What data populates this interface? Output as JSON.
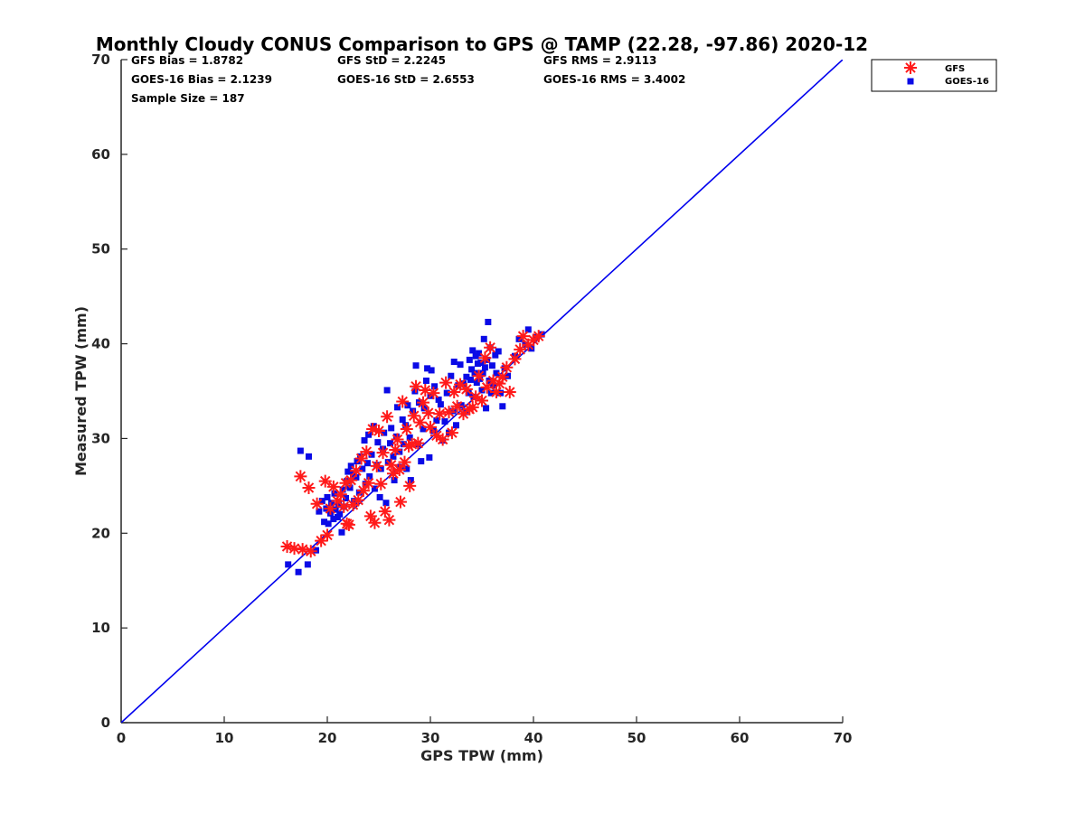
{
  "chart_data": {
    "type": "scatter",
    "title": "Monthly Cloudy CONUS Comparison to GPS @ TAMP (22.28, -97.86) 2020-12",
    "xlabel": "GPS TPW (mm)",
    "ylabel": "Measured TPW (mm)",
    "xlim": [
      0,
      70
    ],
    "ylim": [
      0,
      70
    ],
    "xticks": [
      "0",
      "10",
      "20",
      "30",
      "40",
      "50",
      "60",
      "70"
    ],
    "yticks": [
      "0",
      "10",
      "20",
      "30",
      "40",
      "50",
      "60",
      "70"
    ],
    "grid": false,
    "legend_position": "top-right",
    "stats": {
      "gfs_bias": "GFS Bias = 1.8782",
      "goes_bias": "GOES-16 Bias = 2.1239",
      "sample_size": "Sample Size = 187",
      "gfs_std": "GFS StD = 2.2245",
      "goes_std": "GOES-16 StD = 2.6553",
      "gfs_rms": "GFS RMS = 2.9113",
      "goes_rms": "GOES-16 RMS = 3.4002"
    },
    "reference_line": {
      "x": [
        0,
        70
      ],
      "y": [
        0,
        70
      ],
      "color": "#0000ee"
    },
    "series": [
      {
        "name": "GFS",
        "marker": "asterisk",
        "color": "#ff1a1a",
        "points": [
          [
            16.1,
            18.6
          ],
          [
            16.8,
            18.4
          ],
          [
            17.4,
            26.0
          ],
          [
            17.6,
            18.3
          ],
          [
            18.2,
            24.8
          ],
          [
            18.4,
            18.1
          ],
          [
            19.0,
            23.1
          ],
          [
            19.4,
            19.2
          ],
          [
            19.8,
            25.5
          ],
          [
            20.0,
            19.8
          ],
          [
            20.3,
            22.6
          ],
          [
            20.6,
            24.9
          ],
          [
            21.0,
            23.4
          ],
          [
            21.3,
            24.1
          ],
          [
            21.6,
            22.8
          ],
          [
            21.8,
            25.3
          ],
          [
            21.9,
            21.0
          ],
          [
            22.1,
            20.9
          ],
          [
            22.3,
            25.6
          ],
          [
            22.5,
            23.0
          ],
          [
            22.8,
            26.6
          ],
          [
            23.0,
            23.5
          ],
          [
            23.3,
            27.9
          ],
          [
            23.5,
            24.5
          ],
          [
            23.8,
            28.6
          ],
          [
            24.0,
            25.3
          ],
          [
            24.2,
            21.8
          ],
          [
            24.4,
            31.0
          ],
          [
            24.6,
            21.1
          ],
          [
            24.8,
            27.1
          ],
          [
            25.0,
            30.8
          ],
          [
            25.2,
            25.2
          ],
          [
            25.4,
            28.5
          ],
          [
            25.6,
            22.3
          ],
          [
            25.8,
            32.3
          ],
          [
            26.0,
            21.4
          ],
          [
            26.2,
            27.2
          ],
          [
            26.4,
            26.3
          ],
          [
            26.6,
            28.8
          ],
          [
            26.8,
            29.9
          ],
          [
            27.0,
            26.7
          ],
          [
            27.1,
            23.3
          ],
          [
            27.3,
            33.9
          ],
          [
            27.5,
            27.5
          ],
          [
            27.7,
            31.0
          ],
          [
            27.9,
            29.2
          ],
          [
            28.0,
            25.0
          ],
          [
            28.2,
            29.4
          ],
          [
            28.4,
            32.4
          ],
          [
            28.6,
            35.5
          ],
          [
            28.8,
            29.5
          ],
          [
            29.0,
            31.7
          ],
          [
            29.3,
            33.8
          ],
          [
            29.5,
            35.1
          ],
          [
            29.8,
            32.7
          ],
          [
            30.0,
            31.2
          ],
          [
            30.3,
            34.8
          ],
          [
            30.6,
            30.3
          ],
          [
            30.9,
            32.6
          ],
          [
            31.2,
            29.9
          ],
          [
            31.5,
            35.9
          ],
          [
            31.8,
            32.8
          ],
          [
            32.1,
            30.6
          ],
          [
            32.3,
            34.9
          ],
          [
            32.6,
            33.4
          ],
          [
            32.9,
            35.7
          ],
          [
            33.2,
            32.6
          ],
          [
            33.5,
            35.2
          ],
          [
            33.8,
            33.1
          ],
          [
            34.1,
            33.3
          ],
          [
            34.4,
            34.4
          ],
          [
            34.7,
            36.6
          ],
          [
            35.0,
            34.0
          ],
          [
            35.3,
            38.5
          ],
          [
            35.5,
            35.4
          ],
          [
            35.8,
            39.6
          ],
          [
            36.1,
            36.1
          ],
          [
            36.4,
            34.9
          ],
          [
            36.7,
            35.8
          ],
          [
            37.0,
            36.5
          ],
          [
            37.4,
            37.5
          ],
          [
            37.7,
            34.9
          ],
          [
            38.2,
            38.4
          ],
          [
            38.7,
            39.4
          ],
          [
            39.0,
            40.8
          ],
          [
            39.5,
            39.9
          ],
          [
            40.0,
            40.4
          ],
          [
            40.5,
            40.8
          ]
        ]
      },
      {
        "name": "GOES-16",
        "marker": "square",
        "color": "#0a0ae6",
        "points": [
          [
            16.2,
            16.7
          ],
          [
            17.2,
            15.9
          ],
          [
            17.4,
            28.7
          ],
          [
            18.1,
            16.7
          ],
          [
            18.2,
            28.1
          ],
          [
            18.9,
            18.2
          ],
          [
            19.2,
            22.3
          ],
          [
            19.5,
            23.4
          ],
          [
            19.7,
            21.2
          ],
          [
            19.9,
            22.6
          ],
          [
            20.0,
            23.8
          ],
          [
            20.1,
            21.0
          ],
          [
            20.3,
            22.1
          ],
          [
            20.4,
            23.2
          ],
          [
            20.6,
            21.5
          ],
          [
            20.7,
            24.2
          ],
          [
            20.8,
            22.5
          ],
          [
            21.0,
            21.7
          ],
          [
            21.1,
            23.0
          ],
          [
            21.2,
            22.0
          ],
          [
            21.4,
            20.1
          ],
          [
            21.5,
            24.6
          ],
          [
            21.6,
            22.8
          ],
          [
            21.8,
            23.7
          ],
          [
            21.9,
            25.5
          ],
          [
            22.0,
            26.5
          ],
          [
            22.2,
            24.8
          ],
          [
            22.3,
            27.1
          ],
          [
            22.5,
            26.2
          ],
          [
            22.6,
            23.4
          ],
          [
            22.8,
            25.9
          ],
          [
            22.9,
            27.6
          ],
          [
            23.1,
            24.3
          ],
          [
            23.2,
            28.1
          ],
          [
            23.4,
            26.8
          ],
          [
            23.6,
            29.8
          ],
          [
            23.7,
            25.2
          ],
          [
            23.9,
            27.4
          ],
          [
            24.0,
            30.4
          ],
          [
            24.1,
            26.0
          ],
          [
            24.3,
            28.3
          ],
          [
            24.5,
            31.3
          ],
          [
            24.6,
            24.7
          ],
          [
            24.8,
            27.2
          ],
          [
            24.9,
            29.6
          ],
          [
            25.1,
            23.8
          ],
          [
            25.2,
            26.8
          ],
          [
            25.4,
            28.9
          ],
          [
            25.5,
            30.6
          ],
          [
            25.7,
            23.2
          ],
          [
            25.8,
            35.1
          ],
          [
            25.9,
            27.5
          ],
          [
            26.1,
            29.5
          ],
          [
            26.2,
            31.1
          ],
          [
            26.4,
            28.1
          ],
          [
            26.5,
            25.6
          ],
          [
            26.7,
            30.2
          ],
          [
            26.8,
            33.3
          ],
          [
            27.0,
            28.6
          ],
          [
            27.1,
            27.0
          ],
          [
            27.3,
            32.0
          ],
          [
            27.4,
            29.4
          ],
          [
            27.6,
            31.4
          ],
          [
            27.7,
            26.8
          ],
          [
            27.8,
            33.5
          ],
          [
            28.0,
            30.1
          ],
          [
            28.1,
            25.6
          ],
          [
            28.3,
            32.9
          ],
          [
            28.5,
            35.0
          ],
          [
            28.6,
            37.7
          ],
          [
            28.8,
            29.4
          ],
          [
            28.9,
            33.8
          ],
          [
            29.1,
            27.6
          ],
          [
            29.3,
            31.0
          ],
          [
            29.4,
            33.2
          ],
          [
            29.6,
            36.1
          ],
          [
            29.7,
            37.4
          ],
          [
            29.9,
            28.0
          ],
          [
            30.0,
            34.5
          ],
          [
            30.1,
            37.2
          ],
          [
            30.3,
            30.8
          ],
          [
            30.4,
            35.5
          ],
          [
            30.6,
            31.9
          ],
          [
            30.8,
            34.1
          ],
          [
            31.0,
            33.6
          ],
          [
            31.2,
            29.8
          ],
          [
            31.4,
            31.8
          ],
          [
            31.6,
            34.8
          ],
          [
            31.8,
            30.6
          ],
          [
            32.0,
            36.6
          ],
          [
            32.2,
            32.9
          ],
          [
            32.3,
            38.1
          ],
          [
            32.5,
            31.4
          ],
          [
            32.7,
            35.6
          ],
          [
            32.9,
            37.8
          ],
          [
            33.0,
            33.5
          ],
          [
            33.2,
            35.8
          ],
          [
            33.4,
            32.8
          ],
          [
            33.5,
            36.5
          ],
          [
            33.7,
            34.8
          ],
          [
            33.8,
            38.3
          ],
          [
            33.9,
            36.2
          ],
          [
            34.0,
            37.3
          ],
          [
            34.1,
            39.3
          ],
          [
            34.2,
            34.4
          ],
          [
            34.3,
            36.9
          ],
          [
            34.4,
            38.7
          ],
          [
            34.5,
            35.9
          ],
          [
            34.6,
            37.9
          ],
          [
            34.7,
            39.0
          ],
          [
            34.8,
            36.3
          ],
          [
            34.9,
            38.0
          ],
          [
            35.0,
            35.1
          ],
          [
            35.1,
            36.9
          ],
          [
            35.2,
            40.5
          ],
          [
            35.3,
            37.5
          ],
          [
            35.4,
            33.2
          ],
          [
            35.5,
            38.3
          ],
          [
            35.6,
            42.3
          ],
          [
            35.7,
            36.1
          ],
          [
            35.8,
            39.6
          ],
          [
            35.9,
            34.8
          ],
          [
            36.0,
            37.7
          ],
          [
            36.1,
            35.6
          ],
          [
            36.3,
            38.8
          ],
          [
            36.4,
            36.9
          ],
          [
            36.6,
            39.2
          ],
          [
            36.8,
            34.8
          ],
          [
            37.0,
            33.4
          ],
          [
            37.2,
            37.4
          ],
          [
            37.5,
            36.6
          ],
          [
            38.2,
            38.7
          ],
          [
            38.6,
            40.5
          ],
          [
            39.2,
            39.9
          ],
          [
            39.5,
            41.5
          ],
          [
            39.8,
            39.5
          ],
          [
            40.2,
            40.7
          ],
          [
            40.8,
            41.0
          ]
        ]
      }
    ]
  }
}
